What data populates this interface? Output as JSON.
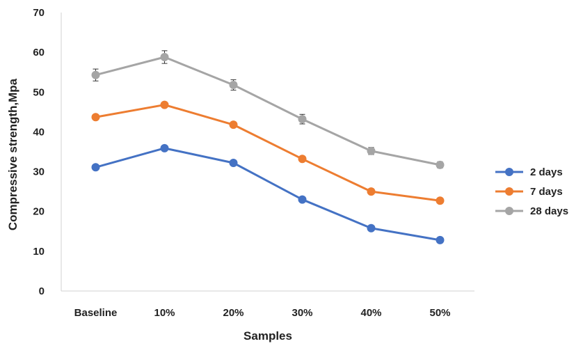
{
  "chart_data": {
    "type": "line",
    "title": "",
    "xlabel": "Samples",
    "ylabel": "Compressive strength,Mpa",
    "categories": [
      "Baseline",
      "10%",
      "20%",
      "30%",
      "40%",
      "50%"
    ],
    "ylim": [
      0,
      70
    ],
    "yticks": [
      0,
      10,
      20,
      30,
      40,
      50,
      60,
      70
    ],
    "grid": false,
    "legend_position": "right",
    "series": [
      {
        "name": "2 days",
        "color": "#4472C4",
        "values": [
          31.1,
          35.9,
          32.2,
          23.0,
          15.8,
          12.8
        ]
      },
      {
        "name": "7 days",
        "color": "#ED7D31",
        "values": [
          43.7,
          46.8,
          41.8,
          33.2,
          25.0,
          22.7
        ]
      },
      {
        "name": "28 days",
        "color": "#A5A5A5",
        "values": [
          54.3,
          58.8,
          51.8,
          43.2,
          35.2,
          31.7
        ],
        "error": [
          1.5,
          1.6,
          1.3,
          1.2,
          0.9,
          0.8
        ]
      }
    ]
  }
}
